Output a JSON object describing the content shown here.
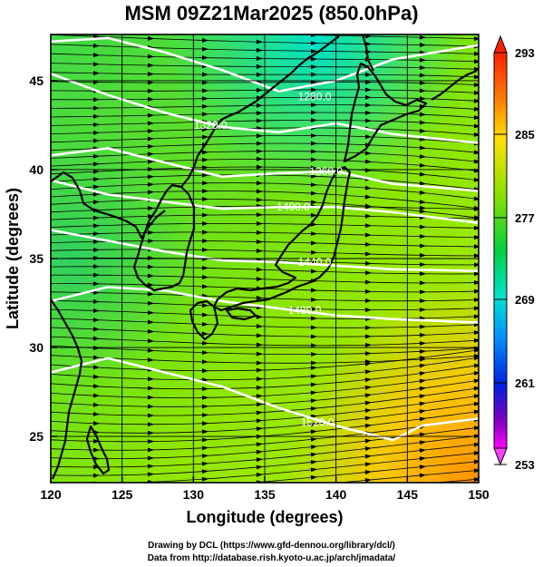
{
  "title": "MSM 09Z21Mar2025 (850.0hPa)",
  "map": {
    "xlabel": "Longitude (degrees)",
    "ylabel": "Latitude  (degrees)",
    "lon_range": [
      120,
      150
    ],
    "lat_range": [
      22.4,
      47.6
    ],
    "x_ticks": [
      120,
      125,
      130,
      135,
      140,
      145,
      150
    ],
    "y_ticks": [
      25,
      30,
      35,
      40,
      45
    ],
    "grid": true,
    "contours": [
      {
        "label": "1280.0",
        "lon": 138.5,
        "lat": 44.1
      },
      {
        "label": "1320.0",
        "lon": 131.2,
        "lat": 42.5
      },
      {
        "label": "1360.0",
        "lon": 139.3,
        "lat": 39.9
      },
      {
        "label": "1400.0",
        "lon": 137.0,
        "lat": 37.9
      },
      {
        "label": "1440.0",
        "lon": 138.5,
        "lat": 34.8
      },
      {
        "label": "1480.0",
        "lon": 137.8,
        "lat": 32.1
      },
      {
        "label": "1520.0",
        "lon": 138.7,
        "lat": 25.8
      }
    ]
  },
  "colorbar": {
    "ticks": [
      "293",
      "285",
      "277",
      "269",
      "261",
      "253"
    ]
  },
  "footer": {
    "line1": "Drawing by DCL (https://www.gfd-dennou.org/library/dcl/)",
    "line2": "Data from http://database.rish.kyoto-u.ac.jp/arch/jmadata/"
  },
  "colors": {
    "field_low": "#ff0000",
    "field_mid": "#00d080",
    "grid": "#000000",
    "contour": "#ffffff"
  }
}
